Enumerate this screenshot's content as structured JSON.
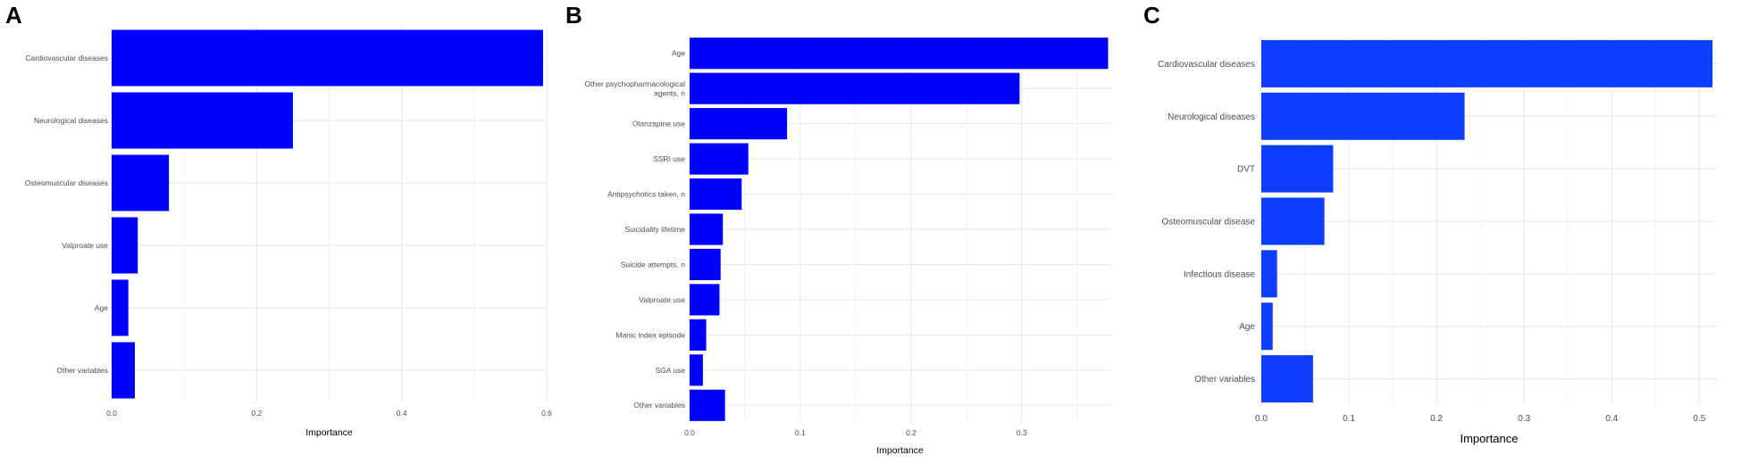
{
  "colors": {
    "bar_ab": "#0000ff",
    "bar_c": "#0d3dff",
    "grid_major": "#e6e6e6",
    "grid_minor": "#f2f2f2",
    "label": "#4d4d4d"
  },
  "chart_data": [
    {
      "panel": "A",
      "type": "bar",
      "orientation": "horizontal",
      "title": "",
      "xlabel": "Importance",
      "ylabel": "",
      "categories": [
        "Cardiovascular diseases",
        "Neurological diseases",
        "Osteomuscular diseases",
        "Valproate use",
        "Age",
        "Other variables"
      ],
      "values": [
        0.595,
        0.25,
        0.079,
        0.036,
        0.023,
        0.032
      ],
      "xlim": [
        0,
        0.6
      ],
      "xticks": [
        0.0,
        0.2,
        0.4,
        0.6
      ],
      "xtick_labels": [
        "0.0",
        "0.2",
        "0.4",
        "0.6"
      ],
      "grid": true
    },
    {
      "panel": "B",
      "type": "bar",
      "orientation": "horizontal",
      "title": "",
      "xlabel": "Importance",
      "ylabel": "",
      "categories": [
        "Age",
        "Other psychopharmacological agents, n",
        "Olanzapine use",
        "SSRI use",
        "Antipsychotics taken, n",
        "Suicidality lifetime",
        "Suicide attempts, n",
        "Valproate use",
        "Manic index episode",
        "SGA use",
        "Other variables"
      ],
      "values": [
        0.378,
        0.298,
        0.088,
        0.053,
        0.047,
        0.03,
        0.028,
        0.027,
        0.015,
        0.012,
        0.032
      ],
      "xlim": [
        0,
        0.38
      ],
      "xticks": [
        0.0,
        0.1,
        0.2,
        0.3
      ],
      "xtick_labels": [
        "0.0",
        "0.1",
        "0.2",
        "0.3"
      ],
      "grid": true
    },
    {
      "panel": "C",
      "type": "bar",
      "orientation": "horizontal",
      "title": "",
      "xlabel": "Importance",
      "ylabel": "",
      "categories": [
        "Cardiovascular diseases",
        "Neurological diseases",
        "DVT",
        "Osteomuscular disease",
        "Infectious disease",
        "Age",
        "Other variables"
      ],
      "values": [
        0.515,
        0.232,
        0.082,
        0.072,
        0.018,
        0.013,
        0.059
      ],
      "xlim": [
        0,
        0.52
      ],
      "xticks": [
        0.0,
        0.1,
        0.2,
        0.3,
        0.4,
        0.5
      ],
      "xtick_labels": [
        "0.0",
        "0.1",
        "0.2",
        "0.3",
        "0.4",
        "0.5"
      ],
      "grid": true
    }
  ]
}
